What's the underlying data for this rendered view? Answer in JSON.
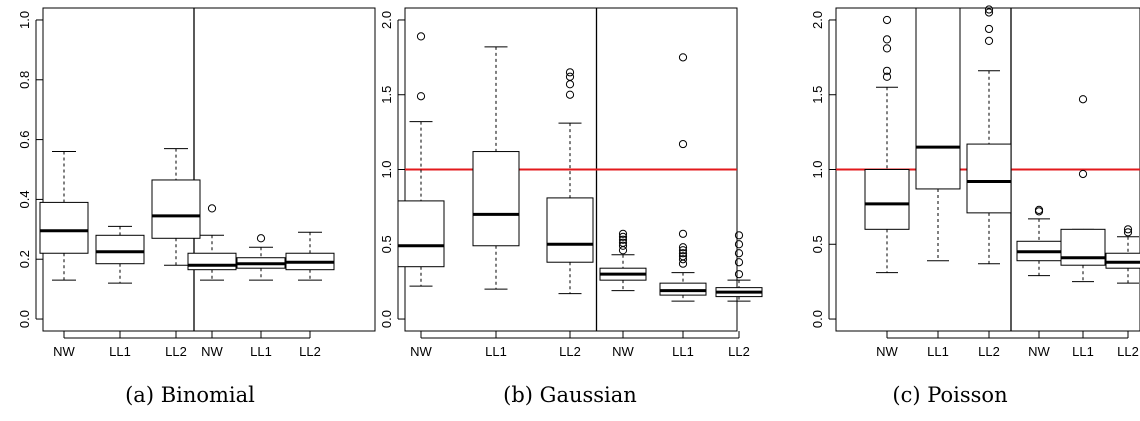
{
  "chart_data": [
    {
      "type": "boxplot",
      "caption": "(a) Binomial",
      "ylim": [
        0.0,
        1.0
      ],
      "yticks": [
        0.0,
        0.2,
        0.4,
        0.6,
        0.8,
        1.0
      ],
      "ytick_labels": [
        "0.0",
        "0.2",
        "0.4",
        "0.6",
        "0.8",
        "1.0"
      ],
      "categories": [
        "NW",
        "LL1",
        "LL2",
        "NW",
        "LL1",
        "LL2"
      ],
      "separator_after_box": 3,
      "reference_line": null,
      "boxes": [
        {
          "min": 0.13,
          "q1": 0.22,
          "median": 0.295,
          "q3": 0.39,
          "max": 0.56,
          "outliers": []
        },
        {
          "min": 0.12,
          "q1": 0.185,
          "median": 0.225,
          "q3": 0.28,
          "max": 0.31,
          "outliers": []
        },
        {
          "min": 0.18,
          "q1": 0.27,
          "median": 0.345,
          "q3": 0.465,
          "max": 0.57,
          "outliers": []
        },
        {
          "min": 0.13,
          "q1": 0.165,
          "median": 0.18,
          "q3": 0.22,
          "max": 0.28,
          "outliers": [
            0.37
          ]
        },
        {
          "min": 0.13,
          "q1": 0.17,
          "median": 0.185,
          "q3": 0.205,
          "max": 0.24,
          "outliers": [
            0.27
          ]
        },
        {
          "min": 0.13,
          "q1": 0.165,
          "median": 0.19,
          "q3": 0.22,
          "max": 0.29,
          "outliers": []
        }
      ]
    },
    {
      "type": "boxplot",
      "caption": "(b) Gaussian",
      "ylim": [
        0.0,
        2.0
      ],
      "yticks": [
        0.0,
        0.5,
        1.0,
        1.5,
        2.0
      ],
      "ytick_labels": [
        "0.0",
        "0.5",
        "1.0",
        "1.5",
        "2.0"
      ],
      "categories": [
        "NW",
        "LL1",
        "LL2",
        "NW",
        "LL1",
        "LL2"
      ],
      "separator_after_box": 3,
      "reference_line": {
        "y": 1.0,
        "color": "#e31a1c"
      },
      "boxes": [
        {
          "min": 0.22,
          "q1": 0.35,
          "median": 0.49,
          "q3": 0.79,
          "max": 1.32,
          "outliers": [
            1.49,
            1.89
          ]
        },
        {
          "min": 0.2,
          "q1": 0.49,
          "median": 0.7,
          "q3": 1.12,
          "max": 1.82,
          "outliers": []
        },
        {
          "min": 0.17,
          "q1": 0.38,
          "median": 0.5,
          "q3": 0.81,
          "max": 1.31,
          "outliers": [
            1.5,
            1.57,
            1.62,
            1.65
          ]
        },
        {
          "min": 0.19,
          "q1": 0.26,
          "median": 0.3,
          "q3": 0.34,
          "max": 0.43,
          "outliers": [
            0.46,
            0.49,
            0.51,
            0.53,
            0.55,
            0.57
          ]
        },
        {
          "min": 0.12,
          "q1": 0.16,
          "median": 0.19,
          "q3": 0.24,
          "max": 0.31,
          "outliers": [
            0.37,
            0.4,
            0.42,
            0.44,
            0.46,
            0.48,
            0.57,
            1.17,
            1.75
          ]
        },
        {
          "min": 0.12,
          "q1": 0.15,
          "median": 0.18,
          "q3": 0.21,
          "max": 0.26,
          "outliers": [
            0.3,
            0.38,
            0.44,
            0.5,
            0.56
          ]
        }
      ]
    },
    {
      "type": "boxplot",
      "caption": "(c) Poisson",
      "ylim": [
        0.0,
        2.0
      ],
      "yticks": [
        0.0,
        0.5,
        1.0,
        1.5,
        2.0
      ],
      "ytick_labels": [
        "0.0",
        "0.5",
        "1.0",
        "1.5",
        "2.0"
      ],
      "categories": [
        "NW",
        "LL1",
        "LL2",
        "NW",
        "LL1",
        "LL2"
      ],
      "separator_after_box": 3,
      "reference_line": {
        "y": 1.0,
        "color": "#e31a1c"
      },
      "boxes": [
        {
          "min": 0.31,
          "q1": 0.6,
          "median": 0.77,
          "q3": 1.0,
          "max": 1.55,
          "outliers": [
            1.62,
            1.66,
            1.81,
            1.87,
            2.0
          ]
        },
        {
          "min": 0.39,
          "q1": 0.87,
          "median": 1.15,
          "q3": 2.1,
          "max": 2.1,
          "outliers": []
        },
        {
          "min": 0.37,
          "q1": 0.71,
          "median": 0.92,
          "q3": 1.17,
          "max": 1.66,
          "outliers": [
            1.86,
            1.94,
            2.05,
            2.07
          ]
        },
        {
          "min": 0.29,
          "q1": 0.39,
          "median": 0.45,
          "q3": 0.52,
          "max": 0.67,
          "outliers": [
            0.72,
            0.73
          ]
        },
        {
          "min": 0.25,
          "q1": 0.36,
          "median": 0.41,
          "q3": 0.6,
          "max": 0.6,
          "outliers": [
            0.97,
            1.47
          ]
        },
        {
          "min": 0.24,
          "q1": 0.34,
          "median": 0.38,
          "q3": 0.44,
          "max": 0.55,
          "outliers": [
            0.58,
            0.6
          ]
        }
      ]
    }
  ]
}
